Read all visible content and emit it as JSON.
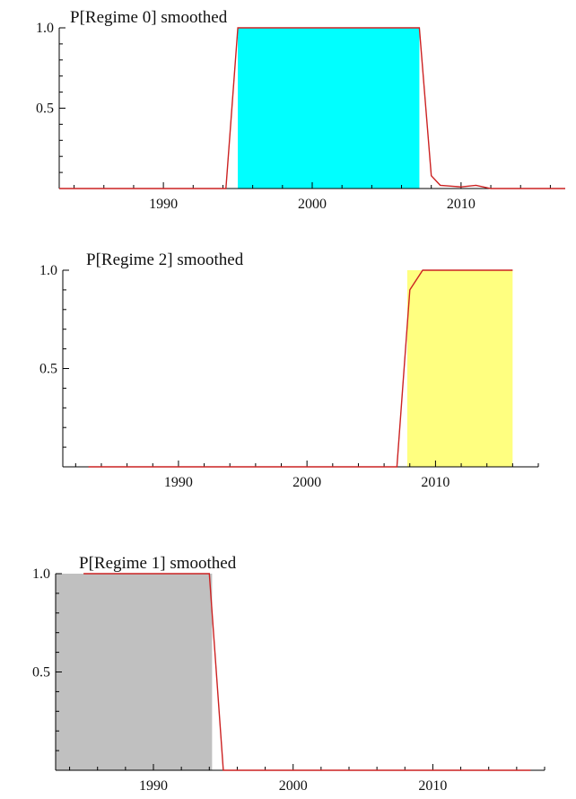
{
  "chart_data": [
    {
      "type": "area",
      "title": "P[Regime 0] smoothed",
      "xlim": [
        1983,
        2017
      ],
      "ylim": [
        0,
        1
      ],
      "x_ticks": [
        1990,
        2000,
        2010
      ],
      "x_tick_labels": [
        "1990",
        "2000",
        "2010"
      ],
      "y_ticks": [
        0.5,
        1.0
      ],
      "y_tick_labels": [
        "0.5",
        "1.0"
      ],
      "shaded_interval": [
        1995,
        2007.2
      ],
      "colors": {
        "fill": "#00ffff",
        "line": "#cc2222"
      },
      "x": [
        1983,
        1994.2,
        1995,
        2007.2,
        2008,
        2008.6,
        2010,
        2011,
        2012,
        2017
      ],
      "y": [
        0,
        0,
        1,
        1,
        0.08,
        0.02,
        0.01,
        0.02,
        0,
        0
      ]
    },
    {
      "type": "area",
      "title": "P[Regime 2] smoothed",
      "xlim": [
        1981,
        2018
      ],
      "ylim": [
        0,
        1
      ],
      "x_ticks": [
        1990,
        2000,
        2010
      ],
      "x_tick_labels": [
        "1990",
        "2000",
        "2010"
      ],
      "y_ticks": [
        0.5,
        1.0
      ],
      "y_tick_labels": [
        "0.5",
        "1.0"
      ],
      "shaded_interval": [
        2007.8,
        2016
      ],
      "colors": {
        "fill": "#ffff80",
        "line": "#cc2222"
      },
      "x": [
        1983,
        2007,
        2008,
        2009,
        2011,
        2016
      ],
      "y": [
        0,
        0,
        0.9,
        1,
        1,
        1
      ]
    },
    {
      "type": "area",
      "title": "P[Regime 1] smoothed",
      "xlim": [
        1983,
        2018
      ],
      "ylim": [
        0,
        1
      ],
      "x_ticks": [
        1990,
        2000,
        2010
      ],
      "x_tick_labels": [
        "1990",
        "2000",
        "2010"
      ],
      "y_ticks": [
        0.5,
        1.0
      ],
      "y_tick_labels": [
        "0.5",
        "1.0"
      ],
      "shaded_interval": [
        1983,
        1994.2
      ],
      "colors": {
        "fill": "#c0c0c0",
        "line": "#cc2222"
      },
      "x": [
        1985,
        1994,
        1995,
        2017
      ],
      "y": [
        1,
        1,
        0,
        0
      ]
    }
  ]
}
